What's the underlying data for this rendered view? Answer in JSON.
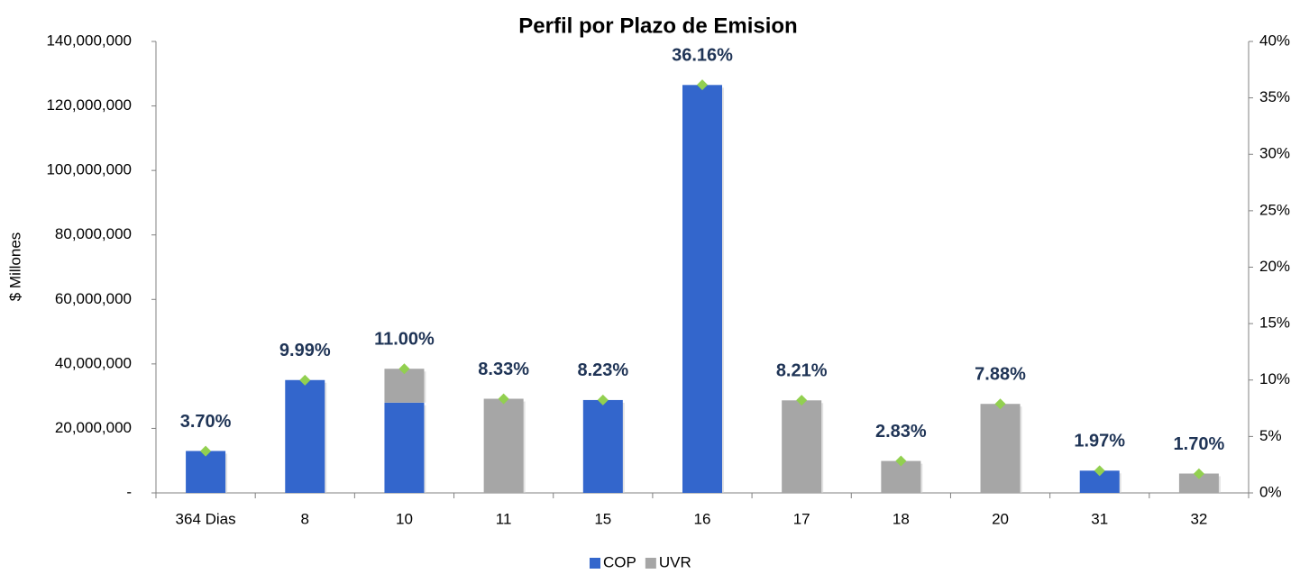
{
  "chart_data": {
    "type": "bar",
    "stacked": true,
    "title": "Perfil por Plazo de Emision",
    "y_label": "$ Millones",
    "categories": [
      "364 Dias",
      "8",
      "10",
      "11",
      "15",
      "16",
      "17",
      "18",
      "20",
      "31",
      "32"
    ],
    "series": [
      {
        "name": "COP",
        "color": "#3366cc",
        "values": [
          13000000,
          35000000,
          28000000,
          null,
          28800000,
          126500000,
          null,
          null,
          null,
          6900000,
          null
        ]
      },
      {
        "name": "UVR",
        "color": "#a6a6a6",
        "values": [
          null,
          null,
          10500000,
          29200000,
          null,
          null,
          28700000,
          9900000,
          27600000,
          null,
          6000000
        ]
      },
      {
        "axis": "y2",
        "color": "#92d050",
        "marker": "diamond",
        "values": [
          3.7,
          9.99,
          11.0,
          8.33,
          8.23,
          36.16,
          8.21,
          2.83,
          7.88,
          1.97,
          1.7
        ],
        "value_labels": [
          "3.70%",
          "9.99%",
          "11.00%",
          "8.33%",
          "8.23%",
          "36.16%",
          "8.21%",
          "2.83%",
          "7.88%",
          "1.97%",
          "1.70%"
        ]
      }
    ],
    "ylim": [
      0,
      140000000
    ],
    "yticks": [
      {
        "value": 0,
        "label": "-"
      },
      {
        "value": 20000000,
        "label": "20,000,000"
      },
      {
        "value": 40000000,
        "label": "40,000,000"
      },
      {
        "value": 60000000,
        "label": "60,000,000"
      },
      {
        "value": 80000000,
        "label": "80,000,000"
      },
      {
        "value": 100000000,
        "label": "100,000,000"
      },
      {
        "value": 120000000,
        "label": "120,000,000"
      },
      {
        "value": 140000000,
        "label": "140,000,000"
      }
    ],
    "y2lim": [
      0,
      40
    ],
    "y2ticks": [
      {
        "value": 0,
        "label": "0%"
      },
      {
        "value": 5,
        "label": "5%"
      },
      {
        "value": 10,
        "label": "10%"
      },
      {
        "value": 15,
        "label": "15%"
      },
      {
        "value": 20,
        "label": "20%"
      },
      {
        "value": 25,
        "label": "25%"
      },
      {
        "value": 30,
        "label": "30%"
      },
      {
        "value": 35,
        "label": "35%"
      },
      {
        "value": 40,
        "label": "40%"
      }
    ],
    "grid": false,
    "legend": "bottom"
  }
}
